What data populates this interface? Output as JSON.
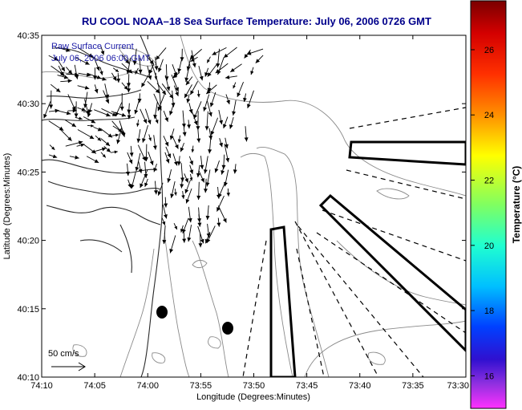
{
  "chart_data": {
    "type": "vector-field-map",
    "title": "RU COOL  NOAA–18  Sea Surface Temperature:  July 06, 2006 0726 GMT",
    "xlabel": "Longitude (Degrees:Minutes)",
    "ylabel": "Latitude (Degrees:Minutes)",
    "x_ticks": [
      "74:10",
      "74:05",
      "74:00",
      "73:55",
      "73:50",
      "73:45",
      "73:40",
      "73:35",
      "73:30"
    ],
    "y_ticks": [
      "40:35",
      "40:30",
      "40:25",
      "40:20",
      "40:15",
      "40:10"
    ],
    "annotation": {
      "line1": "Raw Surface Current",
      "line2": "July 06, 2006 06:00 GMT"
    },
    "scale_label": "50 cm/s",
    "colorbar": {
      "label": "Temperature (°C)",
      "ticks": [
        "26",
        "24",
        "22",
        "20",
        "18",
        "16"
      ],
      "range": [
        15,
        27.5
      ]
    },
    "markers": [
      {
        "lon": "73:58.8",
        "lat": "40:14.8"
      },
      {
        "lon": "73:52.6",
        "lat": "40:13.5"
      }
    ]
  }
}
